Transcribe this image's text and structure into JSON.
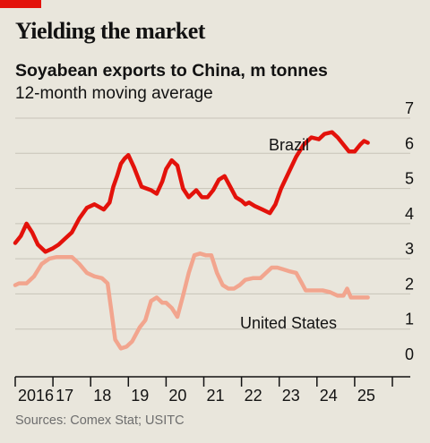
{
  "header": {
    "title": "Yielding the market",
    "subtitle": "Soyabean exports to China, m tonnes",
    "subtitle2": "12-month moving average"
  },
  "footer": {
    "source": "Sources: Comex Stat; USITC"
  },
  "colors": {
    "brazil": "#e3120b",
    "united_states": "#f2a58e",
    "accent": "#e3120b",
    "background": "#e9e6dc",
    "grid": "#c7c3b8"
  },
  "chart_data": {
    "type": "line",
    "title": "Soyabean exports to China, m tonnes",
    "subtitle": "12-month moving average",
    "xlabel": "",
    "ylabel": "",
    "ylim": [
      0,
      7
    ],
    "yticks": [
      "0",
      "1",
      "2",
      "3",
      "4",
      "5",
      "6",
      "7"
    ],
    "xlim": [
      2016.0,
      2026.0
    ],
    "xticks": [
      {
        "label": "2016",
        "value": 2016
      },
      {
        "label": "17",
        "value": 2017
      },
      {
        "label": "18",
        "value": 2018
      },
      {
        "label": "19",
        "value": 2019
      },
      {
        "label": "20",
        "value": 2020
      },
      {
        "label": "21",
        "value": 2021
      },
      {
        "label": "22",
        "value": 2022
      },
      {
        "label": "23",
        "value": 2023
      },
      {
        "label": "24",
        "value": 2024
      },
      {
        "label": "25",
        "value": 2025
      }
    ],
    "grid": true,
    "series": [
      {
        "name": "Brazil",
        "color": "#e3120b",
        "x": [
          2016.0,
          2016.15,
          2016.3,
          2016.45,
          2016.6,
          2016.8,
          2017.0,
          2017.15,
          2017.3,
          2017.5,
          2017.7,
          2017.9,
          2018.1,
          2018.35,
          2018.5,
          2018.6,
          2018.7,
          2018.8,
          2018.9,
          2019.0,
          2019.15,
          2019.35,
          2019.6,
          2019.75,
          2019.9,
          2020.0,
          2020.15,
          2020.3,
          2020.45,
          2020.6,
          2020.8,
          2020.95,
          2021.1,
          2021.25,
          2021.4,
          2021.55,
          2021.7,
          2021.85,
          2022.0,
          2022.1,
          2022.2,
          2022.35,
          2022.55,
          2022.75,
          2022.9,
          2023.05,
          2023.25,
          2023.45,
          2023.65,
          2023.85,
          2024.05,
          2024.2,
          2024.4,
          2024.55,
          2024.7,
          2024.85,
          2025.0,
          2025.15,
          2025.25,
          2025.35
        ],
        "values": [
          3.45,
          3.65,
          4.0,
          3.75,
          3.4,
          3.2,
          3.3,
          3.4,
          3.55,
          3.75,
          4.15,
          4.45,
          4.55,
          4.4,
          4.6,
          5.05,
          5.35,
          5.7,
          5.85,
          5.95,
          5.6,
          5.05,
          4.95,
          4.85,
          5.2,
          5.55,
          5.8,
          5.65,
          5.0,
          4.75,
          4.95,
          4.75,
          4.75,
          4.95,
          5.25,
          5.35,
          5.05,
          4.75,
          4.65,
          4.55,
          4.6,
          4.5,
          4.4,
          4.3,
          4.55,
          5.0,
          5.45,
          5.9,
          6.25,
          6.45,
          6.4,
          6.55,
          6.6,
          6.45,
          6.25,
          6.05,
          6.05,
          6.25,
          6.35,
          6.3
        ]
      },
      {
        "name": "United States",
        "color": "#f2a58e",
        "x": [
          2016.0,
          2016.1,
          2016.3,
          2016.5,
          2016.7,
          2016.9,
          2017.1,
          2017.3,
          2017.5,
          2017.7,
          2017.9,
          2018.1,
          2018.3,
          2018.45,
          2018.55,
          2018.65,
          2018.8,
          2018.95,
          2019.1,
          2019.3,
          2019.45,
          2019.6,
          2019.75,
          2019.9,
          2020.0,
          2020.15,
          2020.3,
          2020.45,
          2020.6,
          2020.75,
          2020.9,
          2021.05,
          2021.2,
          2021.35,
          2021.5,
          2021.65,
          2021.8,
          2021.95,
          2022.1,
          2022.3,
          2022.5,
          2022.65,
          2022.8,
          2022.95,
          2023.1,
          2023.25,
          2023.45,
          2023.6,
          2023.7,
          2023.8,
          2023.95,
          2024.15,
          2024.35,
          2024.55,
          2024.7,
          2024.8,
          2024.9,
          2025.05,
          2025.2,
          2025.35
        ],
        "values": [
          2.25,
          2.3,
          2.3,
          2.5,
          2.85,
          3.0,
          3.05,
          3.05,
          3.05,
          2.85,
          2.6,
          2.5,
          2.45,
          2.3,
          1.5,
          0.7,
          0.45,
          0.5,
          0.65,
          1.05,
          1.25,
          1.8,
          1.9,
          1.75,
          1.75,
          1.6,
          1.35,
          1.95,
          2.6,
          3.1,
          3.15,
          3.1,
          3.1,
          2.6,
          2.25,
          2.15,
          2.15,
          2.25,
          2.4,
          2.45,
          2.45,
          2.6,
          2.75,
          2.75,
          2.7,
          2.65,
          2.6,
          2.3,
          2.1,
          2.1,
          2.1,
          2.1,
          2.05,
          1.95,
          1.95,
          2.15,
          1.9,
          1.9,
          1.9,
          1.9
        ]
      }
    ],
    "annotations": [
      {
        "text": "Brazil",
        "series": "Brazil"
      },
      {
        "text": "United States",
        "series": "United States"
      }
    ]
  }
}
